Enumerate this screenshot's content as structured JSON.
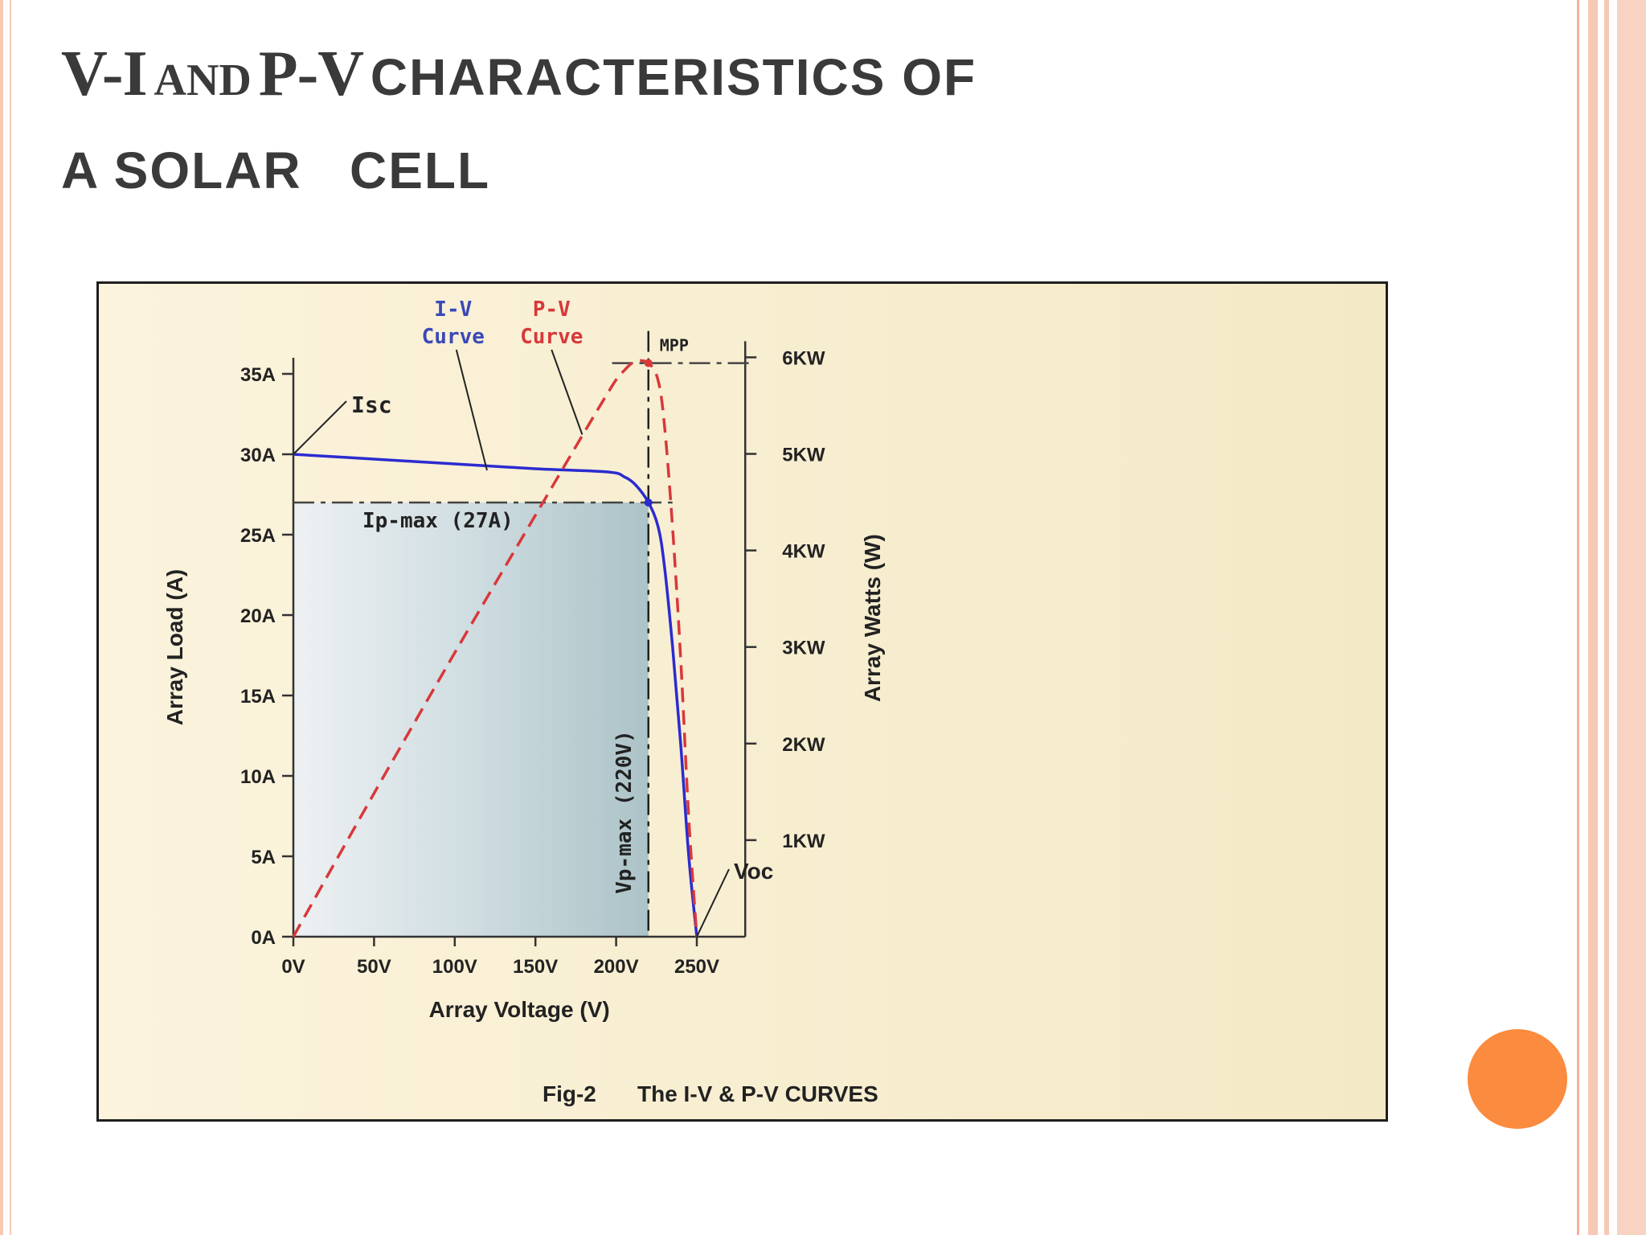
{
  "slide": {
    "title_line1_part1": "V-I",
    "title_line1_part2": "AND",
    "title_line1_part3": "P-V",
    "title_line1_part4": "CHARACTERISTICS OF",
    "title_line2": "A SOLAR   CELL"
  },
  "colors": {
    "accent_dot": "#fb8b3e",
    "iv_curve": "#2b2bd0",
    "pv_curve": "#d8383a",
    "title_text": "#3a3a3a"
  },
  "chart_data": {
    "type": "line",
    "caption_prefix": "Fig-2",
    "caption": "The I-V & P-V CURVES",
    "xlabel": "Array Voltage (V)",
    "ylabel_left": "Array Load (A)",
    "ylabel_right": "Array Watts (W)",
    "xlim": [
      0,
      280
    ],
    "ylim_left": [
      0,
      36
    ],
    "ylim_right": [
      0,
      6000
    ],
    "x_ticks": [
      0,
      50,
      100,
      150,
      200,
      250
    ],
    "x_tick_labels": [
      "0V",
      "50V",
      "100V",
      "150V",
      "200V",
      "250V"
    ],
    "y_left_ticks": [
      0,
      5,
      10,
      15,
      20,
      25,
      30,
      35
    ],
    "y_left_tick_labels": [
      "0A",
      "5A",
      "10A",
      "15A",
      "20A",
      "25A",
      "30A",
      "35A"
    ],
    "y_right_ticks": [
      1000,
      2000,
      3000,
      4000,
      5000,
      6000
    ],
    "y_right_tick_labels": [
      "1KW",
      "2KW",
      "3KW",
      "4KW",
      "5KW",
      "6KW"
    ],
    "series": [
      {
        "name": "I-V Curve",
        "axis": "left",
        "color": "#2b2bd0",
        "x": [
          0,
          50,
          100,
          150,
          195,
          205,
          212,
          220,
          226,
          230,
          235,
          240,
          245,
          250
        ],
        "y": [
          30,
          29.7,
          29.4,
          29.1,
          28.9,
          28.6,
          28.1,
          27,
          25.5,
          23,
          18,
          12,
          5,
          0
        ]
      },
      {
        "name": "P-V Curve",
        "axis": "right",
        "color": "#d8383a",
        "dash": true,
        "x": [
          0,
          50,
          100,
          150,
          195,
          205,
          212,
          220,
          226,
          230,
          235,
          240,
          245,
          250
        ],
        "y": [
          0,
          1485,
          2940,
          4365,
          5636,
          5863,
          5957,
          5940,
          5763,
          5290,
          4230,
          2880,
          1225,
          0
        ]
      }
    ],
    "annotations": {
      "isc": "Isc",
      "voc": "Voc",
      "mpp": "MPP",
      "ip_max": "Ip-max (27A)",
      "vp_max": "Vp-max (220V)",
      "iv_label_line1": "I-V",
      "iv_label_line2": "Curve",
      "pv_label_line1": "P-V",
      "pv_label_line2": "Curve"
    },
    "key_points": {
      "isc_a": 30,
      "voc_v": 250,
      "ip_max_a": 27,
      "vp_max_v": 220,
      "mpp_w": 5940
    }
  }
}
